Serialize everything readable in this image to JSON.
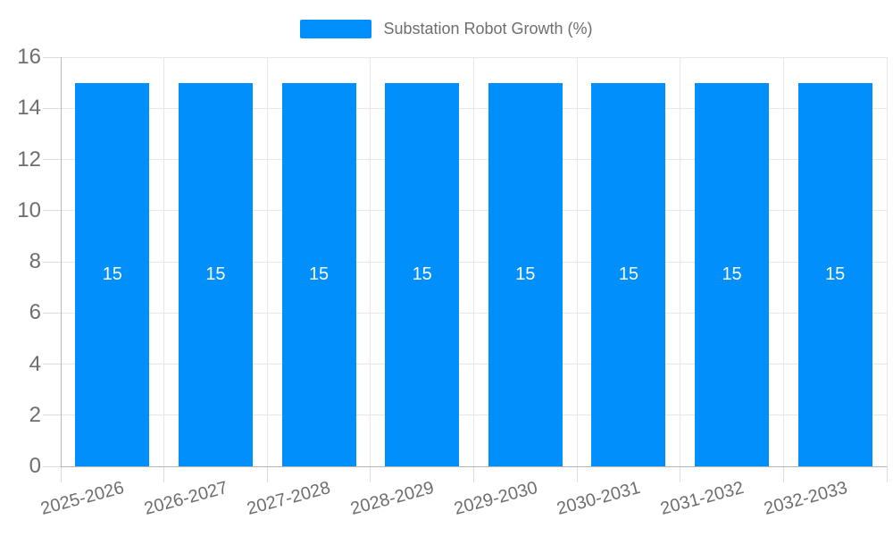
{
  "chart_data": {
    "type": "bar",
    "title": "Substation Robot Growth (%)",
    "categories": [
      "2025-2026",
      "2026-2027",
      "2027-2028",
      "2028-2029",
      "2029-2030",
      "2030-2031",
      "2031-2032",
      "2032-2033"
    ],
    "series": [
      {
        "name": "Substation Robot Growth (%)",
        "values": [
          15,
          15,
          15,
          15,
          15,
          15,
          15,
          15
        ]
      }
    ],
    "data_labels": {
      "visible": true,
      "values": [
        "15",
        "15",
        "15",
        "15",
        "15",
        "15",
        "15",
        "15"
      ]
    },
    "xlabel": "",
    "ylabel": "",
    "ylim": [
      0,
      16
    ],
    "ytick_step": 2,
    "ytick_labels": [
      "0",
      "2",
      "4",
      "6",
      "8",
      "10",
      "12",
      "14",
      "16"
    ],
    "grid": true,
    "legend_position": "top",
    "x_label_rotation": -15,
    "colors": {
      "bar": "#008FFB",
      "data_label": "#FFFFFF",
      "axis_label": "#6E6E6E",
      "legend_text": "#6E6E6E",
      "gridline": "#E7E7E7",
      "axis_line": "#B6B6B6",
      "tick": "#DCDCDC"
    }
  }
}
